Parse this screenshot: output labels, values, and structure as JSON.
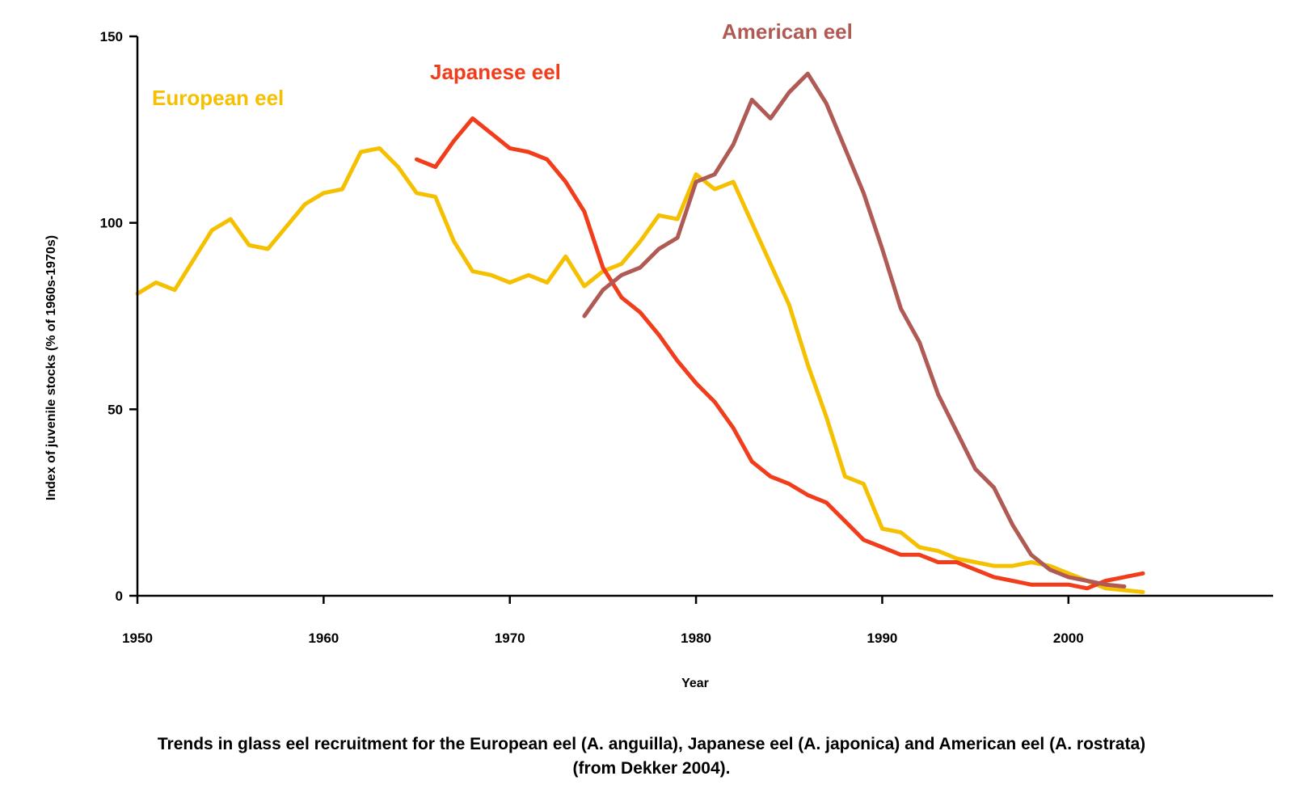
{
  "caption": {
    "line1": "Trends in glass eel recruitment for the European eel (A. anguilla), Japanese eel (A. japonica) and American eel (A. rostrata)",
    "line2": "(from Dekker 2004)."
  },
  "chart_data": {
    "type": "line",
    "title": "",
    "xlabel": "Year",
    "ylabel": "Index of juvenile stocks (% of 1960s-1970s)",
    "xlim": [
      1950,
      2005
    ],
    "ylim": [
      0,
      150
    ],
    "x_ticks": [
      1950,
      1960,
      1970,
      1980,
      1990,
      2000
    ],
    "y_ticks": [
      0,
      50,
      100,
      150
    ],
    "grid": false,
    "series": [
      {
        "name": "European eel",
        "color": "#F5C000",
        "points": [
          [
            1950,
            81
          ],
          [
            1951,
            84
          ],
          [
            1952,
            82
          ],
          [
            1953,
            90
          ],
          [
            1954,
            98
          ],
          [
            1955,
            101
          ],
          [
            1956,
            94
          ],
          [
            1957,
            93
          ],
          [
            1958,
            99
          ],
          [
            1959,
            105
          ],
          [
            1960,
            108
          ],
          [
            1961,
            109
          ],
          [
            1962,
            119
          ],
          [
            1963,
            120
          ],
          [
            1964,
            115
          ],
          [
            1965,
            108
          ],
          [
            1966,
            107
          ],
          [
            1967,
            95
          ],
          [
            1968,
            87
          ],
          [
            1969,
            86
          ],
          [
            1970,
            84
          ],
          [
            1971,
            86
          ],
          [
            1972,
            84
          ],
          [
            1973,
            91
          ],
          [
            1974,
            83
          ],
          [
            1975,
            87
          ],
          [
            1976,
            89
          ],
          [
            1977,
            95
          ],
          [
            1978,
            102
          ],
          [
            1979,
            101
          ],
          [
            1980,
            113
          ],
          [
            1981,
            109
          ],
          [
            1982,
            111
          ],
          [
            1983,
            100
          ],
          [
            1984,
            89
          ],
          [
            1985,
            78
          ],
          [
            1986,
            62
          ],
          [
            1987,
            48
          ],
          [
            1988,
            32
          ],
          [
            1989,
            30
          ],
          [
            1990,
            18
          ],
          [
            1991,
            17
          ],
          [
            1992,
            13
          ],
          [
            1993,
            12
          ],
          [
            1994,
            10
          ],
          [
            1995,
            9
          ],
          [
            1996,
            8
          ],
          [
            1997,
            8
          ],
          [
            1998,
            9
          ],
          [
            1999,
            8
          ],
          [
            2000,
            6
          ],
          [
            2001,
            4
          ],
          [
            2002,
            2
          ],
          [
            2003,
            1.5
          ],
          [
            2004,
            1
          ]
        ]
      },
      {
        "name": "Japanese eel",
        "color": "#F23D1C",
        "points": [
          [
            1965,
            117
          ],
          [
            1966,
            115
          ],
          [
            1967,
            122
          ],
          [
            1968,
            128
          ],
          [
            1969,
            124
          ],
          [
            1970,
            120
          ],
          [
            1971,
            119
          ],
          [
            1972,
            117
          ],
          [
            1973,
            111
          ],
          [
            1974,
            103
          ],
          [
            1975,
            88
          ],
          [
            1976,
            80
          ],
          [
            1977,
            76
          ],
          [
            1978,
            70
          ],
          [
            1979,
            63
          ],
          [
            1980,
            57
          ],
          [
            1981,
            52
          ],
          [
            1982,
            45
          ],
          [
            1983,
            36
          ],
          [
            1984,
            32
          ],
          [
            1985,
            30
          ],
          [
            1986,
            27
          ],
          [
            1987,
            25
          ],
          [
            1988,
            20
          ],
          [
            1989,
            15
          ],
          [
            1990,
            13
          ],
          [
            1991,
            11
          ],
          [
            1992,
            11
          ],
          [
            1993,
            9
          ],
          [
            1994,
            9
          ],
          [
            1995,
            7
          ],
          [
            1996,
            5
          ],
          [
            1997,
            4
          ],
          [
            1998,
            3
          ],
          [
            1999,
            3
          ],
          [
            2000,
            3
          ],
          [
            2001,
            2
          ],
          [
            2002,
            4
          ],
          [
            2003,
            5
          ],
          [
            2004,
            6
          ]
        ]
      },
      {
        "name": "American eel",
        "color": "#B05A55",
        "points": [
          [
            1974,
            75
          ],
          [
            1975,
            82
          ],
          [
            1976,
            86
          ],
          [
            1977,
            88
          ],
          [
            1978,
            93
          ],
          [
            1979,
            96
          ],
          [
            1980,
            111
          ],
          [
            1981,
            113
          ],
          [
            1982,
            121
          ],
          [
            1983,
            133
          ],
          [
            1984,
            128
          ],
          [
            1985,
            135
          ],
          [
            1986,
            140
          ],
          [
            1987,
            132
          ],
          [
            1988,
            120
          ],
          [
            1989,
            108
          ],
          [
            1990,
            93
          ],
          [
            1991,
            77
          ],
          [
            1992,
            68
          ],
          [
            1993,
            54
          ],
          [
            1994,
            44
          ],
          [
            1995,
            34
          ],
          [
            1996,
            29
          ],
          [
            1997,
            19
          ],
          [
            1998,
            11
          ],
          [
            1999,
            7
          ],
          [
            2000,
            5
          ],
          [
            2001,
            4
          ],
          [
            2002,
            3
          ],
          [
            2003,
            2.5
          ]
        ]
      }
    ]
  }
}
